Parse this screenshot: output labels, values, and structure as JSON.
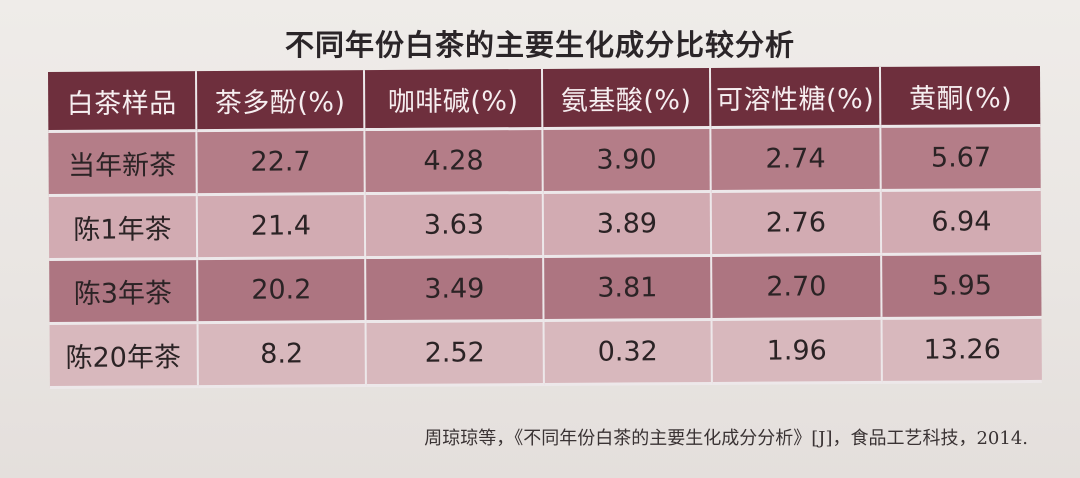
{
  "title": "不同年份白茶的主要生化成分比较分析",
  "table": {
    "headers": [
      "白茶样品",
      "茶多酚(%)",
      "咖啡碱(%)",
      "氨基酸(%)",
      "可溶性糖(%)",
      "黄酮(%)"
    ],
    "rows": [
      [
        "当年新茶",
        "22.7",
        "4.28",
        "3.90",
        "2.74",
        "5.67"
      ],
      [
        "陈1年茶",
        "21.4",
        "3.63",
        "3.89",
        "2.76",
        "6.94"
      ],
      [
        "陈3年茶",
        "20.2",
        "3.49",
        "3.81",
        "2.70",
        "5.95"
      ],
      [
        "陈20年茶",
        "8.2",
        "2.52",
        "0.32",
        "1.96",
        "13.26"
      ]
    ]
  },
  "caption": "周琼琼等，《不同年份白茶的主要生化成分分析》[J]，食品工艺科技，2014.",
  "colors": {
    "header_bg": "#6e2f3d",
    "row_dark": "#b47d88",
    "row_light": "#d2abb2",
    "page_bg": "#efece9"
  }
}
